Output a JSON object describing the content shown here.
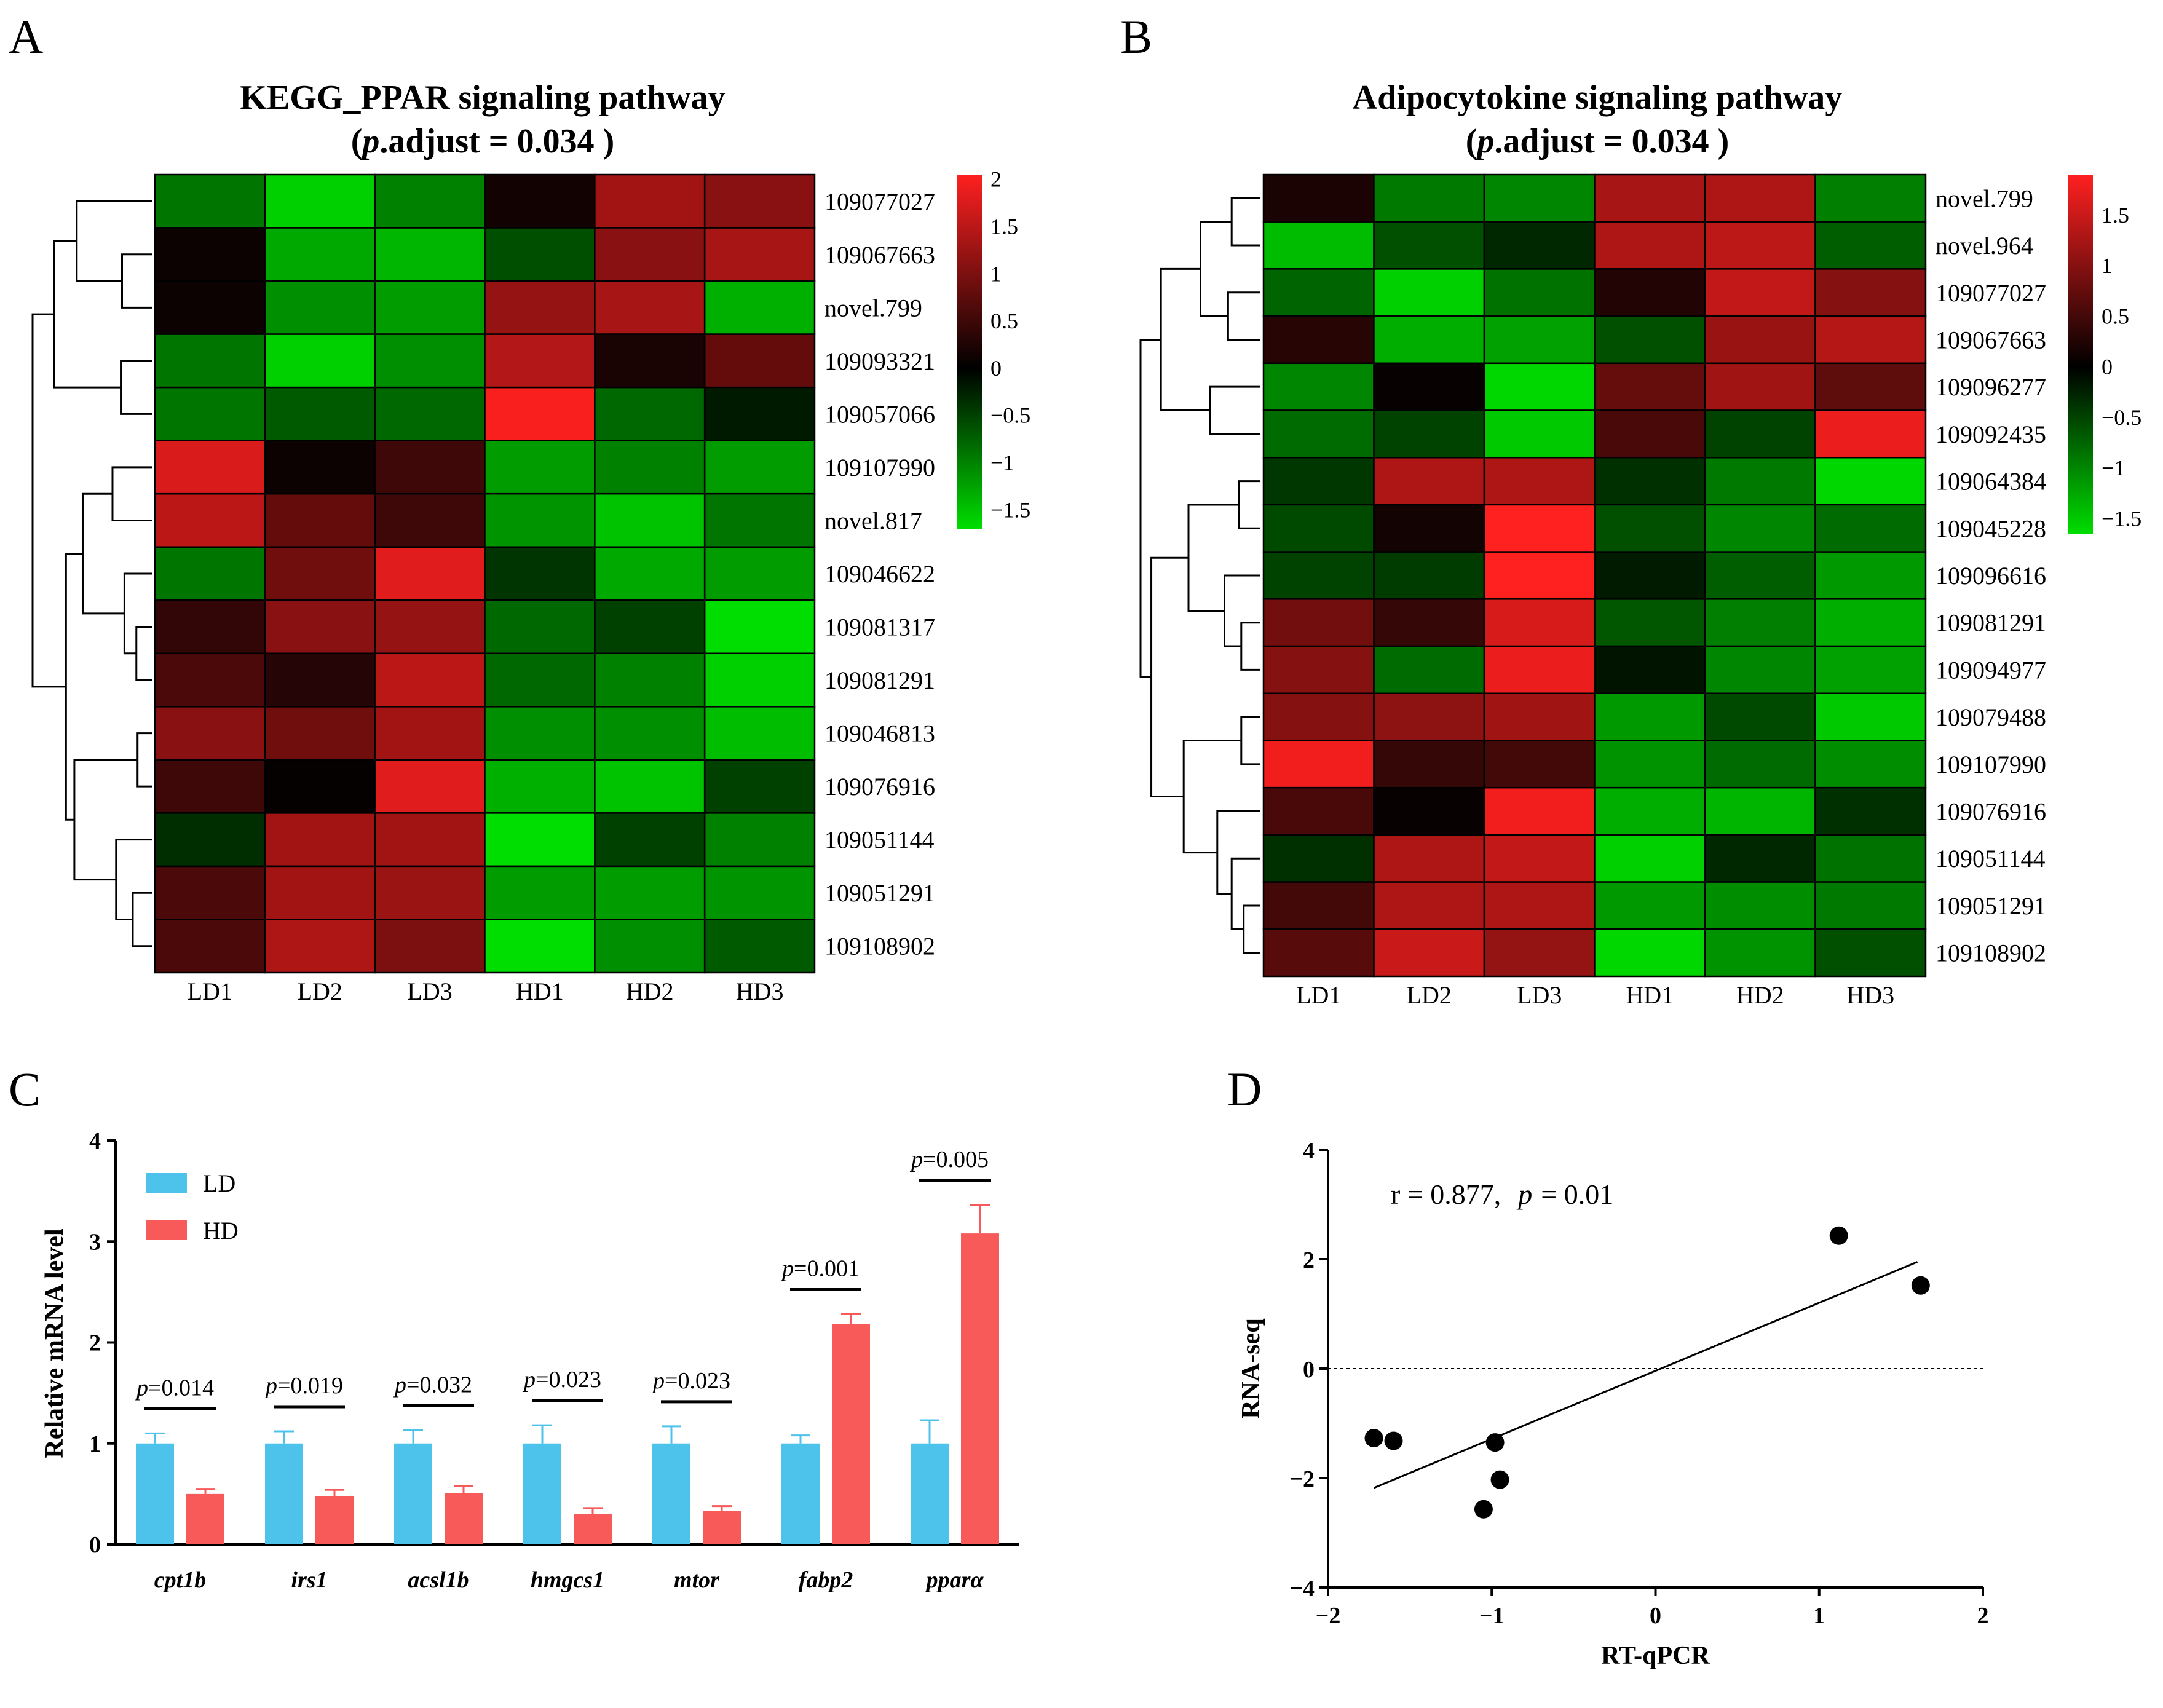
{
  "panels": {
    "A": {
      "letter": "A",
      "title_line1": "KEGG_PPAR signaling pathway",
      "title_line2_open": "(",
      "title_line2_p": "p",
      "title_line2_rest": ".adjust = 0.034  )"
    },
    "B": {
      "letter": "B",
      "title_line1": "Adipocytokine signaling pathway",
      "title_line2_open": "(",
      "title_line2_p": "p",
      "title_line2_rest": ".adjust = 0.034 )"
    },
    "C": {
      "letter": "C"
    },
    "D": {
      "letter": "D"
    }
  },
  "colors": {
    "heat_low": "#00dd00",
    "heat_mid": "#000000",
    "heat_high": "#ff2020",
    "ld_bar": "#4dc3eb",
    "hd_bar": "#f85a5a"
  },
  "chart_data": [
    {
      "type": "heatmap",
      "panel": "A",
      "title": "KEGG_PPAR signaling pathway (p.adjust = 0.034 )",
      "columns": [
        "LD1",
        "LD2",
        "LD3",
        "HD1",
        "HD2",
        "HD3"
      ],
      "rows": [
        "109077027",
        "109067663",
        "novel.799",
        "109093321",
        "109057066",
        "109107990",
        "novel.817",
        "109046622",
        "109081317",
        "109081291",
        "109046813",
        "109076916",
        "109051144",
        "109051291",
        "109108902"
      ],
      "values": [
        [
          -0.9,
          -1.6,
          -1.0,
          0.15,
          1.3,
          1.1
        ],
        [
          0.1,
          -1.3,
          -1.4,
          -0.6,
          1.1,
          1.35
        ],
        [
          0.1,
          -1.1,
          -1.2,
          1.2,
          1.35,
          -1.35
        ],
        [
          -0.9,
          -1.6,
          -1.1,
          1.45,
          0.2,
          0.8
        ],
        [
          -0.9,
          -0.7,
          -0.8,
          2.0,
          -0.8,
          -0.2
        ],
        [
          1.75,
          0.1,
          0.5,
          -1.2,
          -1.0,
          -1.2
        ],
        [
          1.5,
          0.8,
          0.5,
          -1.15,
          -1.5,
          -0.9
        ],
        [
          -0.9,
          0.9,
          1.8,
          -0.4,
          -1.3,
          -1.2
        ],
        [
          0.4,
          1.1,
          1.2,
          -0.8,
          -0.5,
          -1.8
        ],
        [
          0.6,
          0.3,
          1.5,
          -0.8,
          -1.0,
          -1.6
        ],
        [
          1.1,
          0.9,
          1.3,
          -1.1,
          -1.1,
          -1.45
        ],
        [
          0.5,
          0.05,
          1.8,
          -1.35,
          -1.5,
          -0.5
        ],
        [
          -0.35,
          1.3,
          1.3,
          -1.75,
          -0.5,
          -1.0
        ],
        [
          0.6,
          1.3,
          1.25,
          -1.2,
          -1.2,
          -1.15
        ],
        [
          0.6,
          1.4,
          1.0,
          -1.7,
          -1.1,
          -0.7
        ]
      ],
      "colorbar": {
        "min": -1.7,
        "max": 2.05,
        "ticks": [
          "2",
          "1.5",
          "1",
          "0.5",
          "0",
          "−0.5",
          "−1",
          "−1.5"
        ],
        "tick_values": [
          2,
          1.5,
          1,
          0.5,
          0,
          -0.5,
          -1,
          -1.5
        ]
      }
    },
    {
      "type": "heatmap",
      "panel": "B",
      "title": "Adipocytokine signaling pathway (p.adjust = 0.034 )",
      "columns": [
        "LD1",
        "LD2",
        "LD3",
        "HD1",
        "HD2",
        "HD3"
      ],
      "rows": [
        "novel.799",
        "novel.964",
        "109077027",
        "109067663",
        "109096277",
        "109092435",
        "109064384",
        "109045228",
        "109096616",
        "109081291",
        "109094977",
        "109079488",
        "109107990",
        "109076916",
        "109051144",
        "109051291",
        "109108902"
      ],
      "values": [
        [
          0.2,
          -0.9,
          -1.0,
          1.25,
          1.3,
          -0.95
        ],
        [
          -1.4,
          -0.6,
          -0.3,
          1.3,
          1.4,
          -0.7
        ],
        [
          -0.75,
          -1.55,
          -0.85,
          0.25,
          1.45,
          1.0
        ],
        [
          0.3,
          -1.3,
          -1.2,
          -0.6,
          1.15,
          1.35
        ],
        [
          -1.0,
          0.05,
          -1.6,
          0.75,
          1.2,
          0.7
        ],
        [
          -0.8,
          -0.5,
          -1.5,
          0.55,
          -0.5,
          1.75
        ],
        [
          -0.4,
          1.3,
          1.3,
          -0.35,
          -0.9,
          -1.6
        ],
        [
          -0.55,
          0.15,
          1.9,
          -0.6,
          -1.0,
          -0.8
        ],
        [
          -0.5,
          -0.45,
          1.9,
          -0.2,
          -0.7,
          -1.15
        ],
        [
          0.85,
          0.4,
          1.6,
          -0.65,
          -0.95,
          -1.3
        ],
        [
          1.0,
          -0.8,
          1.75,
          -0.15,
          -1.0,
          -1.2
        ],
        [
          1.0,
          1.05,
          1.2,
          -1.15,
          -0.55,
          -1.5
        ],
        [
          1.8,
          0.4,
          0.5,
          -1.1,
          -0.8,
          -1.05
        ],
        [
          0.55,
          0.05,
          1.8,
          -1.3,
          -1.35,
          -0.35
        ],
        [
          -0.35,
          1.3,
          1.45,
          -1.55,
          -0.3,
          -0.85
        ],
        [
          0.5,
          1.3,
          1.3,
          -1.15,
          -1.05,
          -0.9
        ],
        [
          0.65,
          1.5,
          1.1,
          -1.6,
          -1.1,
          -0.6
        ]
      ],
      "colorbar": {
        "min": -1.65,
        "max": 1.9,
        "ticks": [
          "1.5",
          "1",
          "0.5",
          "0",
          "−0.5",
          "−1",
          "−1.5"
        ],
        "tick_values": [
          1.5,
          1,
          0.5,
          0,
          -0.5,
          -1,
          -1.5
        ]
      }
    },
    {
      "type": "bar",
      "panel": "C",
      "ylabel": "Relative mRNA level",
      "ylim": [
        0,
        4
      ],
      "yticks": [
        "0",
        "1",
        "2",
        "3",
        "4"
      ],
      "categories": [
        "cpt1b",
        "irs1",
        "acsl1b",
        "hmgcs1",
        "mtor",
        "fabp2",
        "pparα"
      ],
      "series": [
        {
          "name": "LD",
          "values": [
            1.0,
            1.0,
            1.0,
            1.0,
            1.0,
            1.0,
            1.0
          ],
          "errors": [
            0.1,
            0.12,
            0.13,
            0.18,
            0.17,
            0.08,
            0.23
          ]
        },
        {
          "name": "HD",
          "values": [
            0.5,
            0.48,
            0.51,
            0.3,
            0.33,
            2.18,
            3.08
          ],
          "errors": [
            0.05,
            0.06,
            0.07,
            0.06,
            0.05,
            0.1,
            0.28
          ]
        }
      ],
      "p_values": [
        {
          "p": "p",
          "text": "=0.014"
        },
        {
          "p": "p",
          "text": "=0.019"
        },
        {
          "p": "p",
          "text": "=0.032"
        },
        {
          "p": "p",
          "text": "=0.023"
        },
        {
          "p": "p",
          "text": "=0.023"
        },
        {
          "p": "p",
          "text": "=0.001"
        },
        {
          "p": "p",
          "text": "=0.005"
        }
      ],
      "legend": [
        "LD",
        "HD"
      ]
    },
    {
      "type": "scatter",
      "panel": "D",
      "xlabel": "RT-qPCR",
      "ylabel": "RNA-seq",
      "xlim": [
        -2,
        2
      ],
      "ylim": [
        -4,
        4
      ],
      "xticks": [
        "−2",
        "−1",
        "0",
        "1",
        "2"
      ],
      "yticks": [
        "4",
        "2",
        "0",
        "−2",
        "−4"
      ],
      "points": [
        {
          "x": -1.72,
          "y": -1.27
        },
        {
          "x": -1.6,
          "y": -1.32
        },
        {
          "x": -1.05,
          "y": -2.57
        },
        {
          "x": -0.98,
          "y": -1.35
        },
        {
          "x": -0.95,
          "y": -2.03
        },
        {
          "x": 1.12,
          "y": 2.43
        },
        {
          "x": 1.62,
          "y": 1.52
        }
      ],
      "fit_line": {
        "x0": -1.72,
        "y0": -2.18,
        "x1": 1.6,
        "y1": 1.95
      },
      "reference_y": 0,
      "annotation_r": "r = 0.877,",
      "annotation_p": "p",
      "annotation_pval": "= 0.01"
    }
  ]
}
